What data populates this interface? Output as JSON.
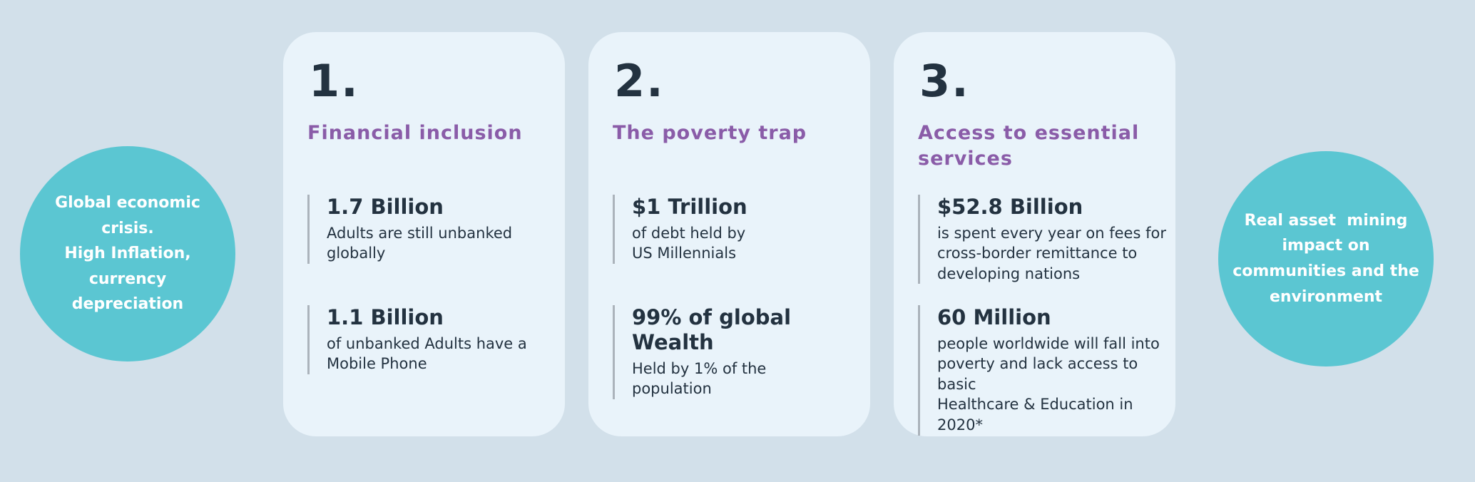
{
  "colors": {
    "page_background": "#D2E0EA",
    "card_background": "#E9F3FA",
    "circle_teal": "#5BC6D2",
    "heading_purple": "#8A5CA8",
    "text_dark": "#233240",
    "stat_bar_gray": "#ABB3BB",
    "circle_text_white": "#FFFFFF"
  },
  "left_circle": {
    "text": "Global economic\ncrisis.\nHigh Inflation,\ncurrency\ndepreciation"
  },
  "right_circle": {
    "text": "Real asset  mining\nimpact on\ncommunities and the\nenvironment"
  },
  "cards": [
    {
      "number": "1.",
      "title": "Financial inclusion",
      "stats": [
        {
          "value": "1.7 Billion",
          "description": "Adults are still unbanked\nglobally"
        },
        {
          "value": "1.1 Billion",
          "description": "of unbanked Adults have a\nMobile Phone"
        }
      ]
    },
    {
      "number": "2.",
      "title": "The poverty trap",
      "stats": [
        {
          "value": "$1 Trillion",
          "description": "of debt held by\nUS Millennials"
        },
        {
          "value": "99% of global Wealth",
          "description": "Held by 1% of the\npopulation"
        }
      ]
    },
    {
      "number": "3.",
      "title": "Access to essential\nservices",
      "stats": [
        {
          "value": "$52.8 Billion",
          "description": "is spent every year on fees for\ncross-border remittance to\ndeveloping nations"
        },
        {
          "value": "60 Million",
          "description": "people worldwide will fall into\npoverty and lack access to basic\nHealthcare & Education in 2020*"
        }
      ]
    }
  ]
}
